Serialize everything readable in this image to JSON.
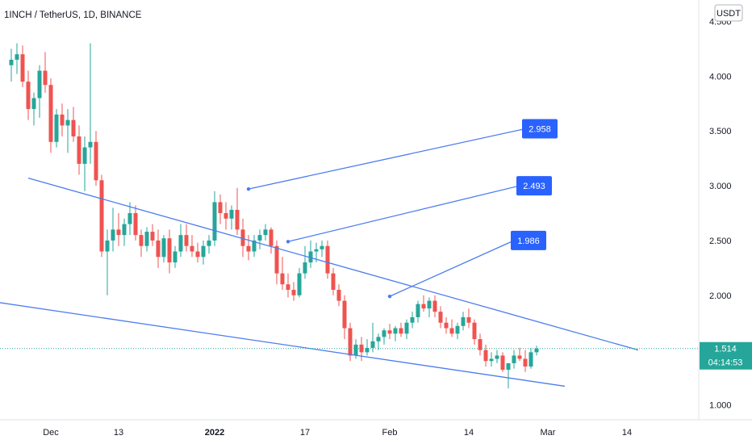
{
  "chart_data": {
    "type": "candlestick",
    "title": "1INCH / TetherUS, 1D, BINANCE",
    "currency": "USDT",
    "y_ticks": [
      "4.500",
      "4.000",
      "3.500",
      "3.000",
      "2.500",
      "2.000",
      "1.500",
      "1.000"
    ],
    "x_ticks": [
      {
        "label": "Dec",
        "bold": false
      },
      {
        "label": "13",
        "bold": false
      },
      {
        "label": "2022",
        "bold": true
      },
      {
        "label": "17",
        "bold": false
      },
      {
        "label": "Feb",
        "bold": false
      },
      {
        "label": "14",
        "bold": false
      },
      {
        "label": "Mar",
        "bold": false
      },
      {
        "label": "14",
        "bold": false
      }
    ],
    "ylim": [
      0.85,
      4.6
    ],
    "x_range_days": [
      -15,
      100
    ],
    "x_tick_days": [
      0,
      12,
      29,
      45,
      60,
      74,
      88,
      102
    ],
    "last_price": "1.514",
    "last_price_value": 1.514,
    "countdown": "04:14:53",
    "colors": {
      "up": "#26a69a",
      "down": "#ef5350",
      "line": "#4c7cf0",
      "label_bg": "#2962ff",
      "price_bg": "#26a69a"
    },
    "candles": [
      [
        -7,
        4.1,
        4.25,
        3.95,
        4.15
      ],
      [
        -6,
        4.15,
        4.3,
        4.02,
        4.2
      ],
      [
        -5,
        4.2,
        4.28,
        3.9,
        3.95
      ],
      [
        -4,
        3.95,
        4.05,
        3.6,
        3.7
      ],
      [
        -3,
        3.7,
        3.85,
        3.55,
        3.8
      ],
      [
        -2,
        3.8,
        4.1,
        3.62,
        4.05
      ],
      [
        -1,
        4.05,
        4.22,
        3.85,
        3.92
      ],
      [
        0,
        3.92,
        3.98,
        3.3,
        3.4
      ],
      [
        1,
        3.4,
        3.7,
        3.35,
        3.65
      ],
      [
        2,
        3.65,
        3.75,
        3.45,
        3.55
      ],
      [
        3,
        3.55,
        3.7,
        3.3,
        3.6
      ],
      [
        4,
        3.6,
        3.72,
        3.4,
        3.45
      ],
      [
        5,
        3.45,
        3.55,
        3.1,
        3.2
      ],
      [
        6,
        3.2,
        3.45,
        2.95,
        3.35
      ],
      [
        7,
        3.35,
        4.3,
        3.2,
        3.4
      ],
      [
        8,
        3.4,
        3.5,
        3.0,
        3.05
      ],
      [
        9,
        3.05,
        3.1,
        2.35,
        2.4
      ],
      [
        10,
        2.4,
        2.6,
        2.0,
        2.5
      ],
      [
        11,
        2.5,
        2.8,
        2.4,
        2.6
      ],
      [
        12,
        2.6,
        2.75,
        2.45,
        2.55
      ],
      [
        13,
        2.55,
        2.7,
        2.45,
        2.65
      ],
      [
        14,
        2.65,
        2.85,
        2.55,
        2.75
      ],
      [
        15,
        2.75,
        2.82,
        2.5,
        2.55
      ],
      [
        16,
        2.55,
        2.6,
        2.35,
        2.45
      ],
      [
        17,
        2.45,
        2.62,
        2.4,
        2.58
      ],
      [
        18,
        2.58,
        2.65,
        2.45,
        2.5
      ],
      [
        19,
        2.5,
        2.6,
        2.25,
        2.35
      ],
      [
        20,
        2.35,
        2.55,
        2.3,
        2.52
      ],
      [
        21,
        2.52,
        2.6,
        2.2,
        2.3
      ],
      [
        22,
        2.3,
        2.45,
        2.25,
        2.4
      ],
      [
        23,
        2.4,
        2.65,
        2.35,
        2.55
      ],
      [
        24,
        2.55,
        2.65,
        2.4,
        2.45
      ],
      [
        25,
        2.45,
        2.55,
        2.35,
        2.4
      ],
      [
        26,
        2.4,
        2.48,
        2.3,
        2.35
      ],
      [
        27,
        2.35,
        2.5,
        2.28,
        2.45
      ],
      [
        28,
        2.45,
        2.55,
        2.38,
        2.5
      ],
      [
        29,
        2.5,
        2.95,
        2.45,
        2.85
      ],
      [
        30,
        2.85,
        2.92,
        2.65,
        2.75
      ],
      [
        31,
        2.75,
        2.85,
        2.6,
        2.7
      ],
      [
        32,
        2.7,
        2.82,
        2.6,
        2.78
      ],
      [
        33,
        2.78,
        2.98,
        2.55,
        2.6
      ],
      [
        34,
        2.6,
        2.7,
        2.35,
        2.45
      ],
      [
        35,
        2.45,
        2.55,
        2.32,
        2.4
      ],
      [
        36,
        2.4,
        2.55,
        2.35,
        2.5
      ],
      [
        37,
        2.5,
        2.6,
        2.42,
        2.55
      ],
      [
        38,
        2.55,
        2.65,
        2.5,
        2.6
      ],
      [
        39,
        2.6,
        2.62,
        2.38,
        2.45
      ],
      [
        40,
        2.45,
        2.5,
        2.1,
        2.2
      ],
      [
        41,
        2.2,
        2.35,
        2.05,
        2.1
      ],
      [
        42,
        2.1,
        2.2,
        1.98,
        2.05
      ],
      [
        43,
        2.05,
        2.12,
        1.95,
        2.0
      ],
      [
        44,
        2.0,
        2.25,
        1.98,
        2.2
      ],
      [
        45,
        2.2,
        2.45,
        2.15,
        2.3
      ],
      [
        46,
        2.3,
        2.5,
        2.25,
        2.4
      ],
      [
        47,
        2.4,
        2.48,
        2.3,
        2.42
      ],
      [
        48,
        2.42,
        2.5,
        2.35,
        2.45
      ],
      [
        49,
        2.45,
        2.5,
        2.15,
        2.2
      ],
      [
        50,
        2.2,
        2.25,
        2.0,
        2.05
      ],
      [
        51,
        2.05,
        2.1,
        1.9,
        1.95
      ],
      [
        52,
        1.95,
        2.0,
        1.6,
        1.7
      ],
      [
        53,
        1.7,
        1.75,
        1.4,
        1.45
      ],
      [
        54,
        1.45,
        1.6,
        1.42,
        1.55
      ],
      [
        55,
        1.55,
        1.62,
        1.4,
        1.48
      ],
      [
        56,
        1.48,
        1.6,
        1.45,
        1.52
      ],
      [
        57,
        1.52,
        1.75,
        1.48,
        1.58
      ],
      [
        58,
        1.58,
        1.65,
        1.5,
        1.62
      ],
      [
        59,
        1.62,
        1.7,
        1.55,
        1.68
      ],
      [
        60,
        1.68,
        1.74,
        1.6,
        1.65
      ],
      [
        61,
        1.65,
        1.72,
        1.58,
        1.7
      ],
      [
        62,
        1.7,
        1.75,
        1.62,
        1.65
      ],
      [
        63,
        1.65,
        1.78,
        1.6,
        1.75
      ],
      [
        64,
        1.75,
        1.85,
        1.7,
        1.8
      ],
      [
        65,
        1.8,
        1.95,
        1.75,
        1.92
      ],
      [
        66,
        1.92,
        2.0,
        1.85,
        1.88
      ],
      [
        67,
        1.88,
        1.98,
        1.8,
        1.95
      ],
      [
        68,
        1.95,
        2.0,
        1.8,
        1.85
      ],
      [
        69,
        1.85,
        1.9,
        1.7,
        1.75
      ],
      [
        70,
        1.75,
        1.8,
        1.65,
        1.7
      ],
      [
        71,
        1.7,
        1.78,
        1.62,
        1.65
      ],
      [
        72,
        1.65,
        1.75,
        1.6,
        1.72
      ],
      [
        73,
        1.72,
        1.85,
        1.68,
        1.8
      ],
      [
        74,
        1.8,
        1.88,
        1.7,
        1.75
      ],
      [
        75,
        1.75,
        1.78,
        1.55,
        1.6
      ],
      [
        76,
        1.6,
        1.65,
        1.45,
        1.5
      ],
      [
        77,
        1.5,
        1.55,
        1.35,
        1.4
      ],
      [
        78,
        1.4,
        1.48,
        1.35,
        1.42
      ],
      [
        79,
        1.42,
        1.5,
        1.38,
        1.45
      ],
      [
        80,
        1.45,
        1.48,
        1.3,
        1.32
      ],
      [
        81,
        1.32,
        1.38,
        1.15,
        1.38
      ],
      [
        82,
        1.38,
        1.5,
        1.33,
        1.45
      ],
      [
        83,
        1.45,
        1.52,
        1.4,
        1.42
      ],
      [
        84,
        1.42,
        1.5,
        1.3,
        1.35
      ],
      [
        85,
        1.35,
        1.52,
        1.33,
        1.48
      ],
      [
        86,
        1.48,
        1.54,
        1.45,
        1.514
      ]
    ],
    "trendlines": [
      {
        "name": "upper",
        "start": [
          -4,
          3.07
        ],
        "end": [
          104,
          1.5
        ]
      },
      {
        "name": "lower",
        "start": [
          -27,
          2.07
        ],
        "end": [
          91,
          1.17
        ]
      },
      {
        "name": "target-line-1",
        "start": [
          35,
          2.97
        ],
        "end": [
          84,
          3.52
        ]
      },
      {
        "name": "target-line-2",
        "start": [
          42,
          2.49
        ],
        "end": [
          83,
          3.0
        ]
      },
      {
        "name": "target-line-3",
        "start": [
          60,
          1.99
        ],
        "end": [
          82,
          2.5
        ]
      }
    ],
    "target_labels": [
      {
        "text": "2.958",
        "at": [
          84,
          3.52
        ]
      },
      {
        "text": "2.493",
        "at": [
          83,
          3.0
        ]
      },
      {
        "text": "1.986",
        "at": [
          82,
          2.5
        ]
      }
    ]
  }
}
